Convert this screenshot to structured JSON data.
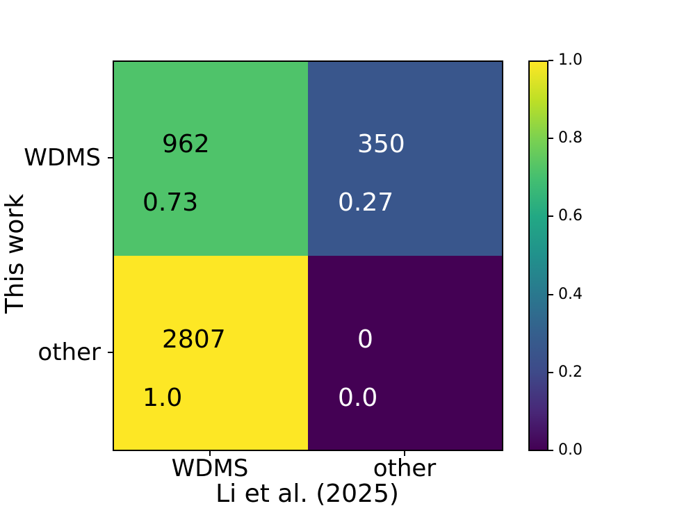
{
  "figure": {
    "xlabel": "Li et al. (2025)",
    "ylabel": "This work",
    "background_color": "#ffffff",
    "axis_color": "#000000"
  },
  "chart_data": {
    "type": "heatmap",
    "title": "",
    "xlabel": "Li et al. (2025)",
    "ylabel": "This work",
    "x_categories": [
      "WDMS",
      "other"
    ],
    "y_categories": [
      "WDMS",
      "other"
    ],
    "counts": [
      [
        962,
        350
      ],
      [
        2807,
        0
      ]
    ],
    "row_fractions": [
      [
        0.73,
        0.27
      ],
      [
        1.0,
        0.0
      ]
    ],
    "colormap": "viridis",
    "color_range": [
      0.0,
      1.0
    ],
    "legend_position": "right-colorbar",
    "grid": false,
    "colorbar_ticks": [
      "1.0",
      "0.8",
      "0.6",
      "0.4",
      "0.2",
      "0.0"
    ],
    "cells": [
      {
        "row": "WDMS",
        "col": "WDMS",
        "count": "962",
        "fraction": "0.73",
        "value": 0.73,
        "color": "#4fc36a",
        "text_color": "#000000"
      },
      {
        "row": "WDMS",
        "col": "other",
        "count": "350",
        "fraction": "0.27",
        "value": 0.27,
        "color": "#39568c",
        "text_color": "#ffffff"
      },
      {
        "row": "other",
        "col": "WDMS",
        "count": "2807",
        "fraction": "1.0",
        "value": 1.0,
        "color": "#fde725",
        "text_color": "#000000"
      },
      {
        "row": "other",
        "col": "other",
        "count": "0",
        "fraction": "0.0",
        "value": 0.0,
        "color": "#440154",
        "text_color": "#ffffff"
      }
    ],
    "viridis_stops": [
      "#440154",
      "#482878",
      "#3e4a89",
      "#355f8d",
      "#2a788e",
      "#21918c",
      "#22a884",
      "#44bf70",
      "#7ad151",
      "#bddf26",
      "#fde725"
    ]
  }
}
